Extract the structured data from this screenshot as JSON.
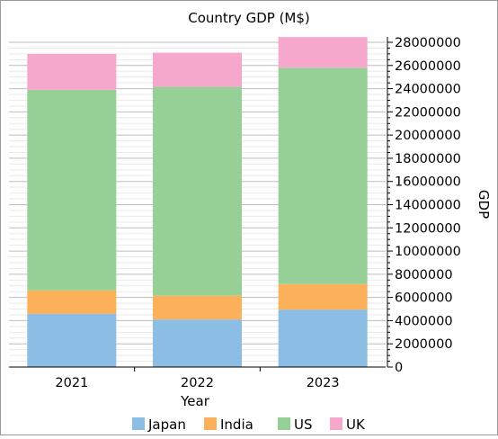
{
  "chart_data": {
    "type": "bar",
    "stacked": true,
    "title": "Country GDP (M$)",
    "xlabel": "Year",
    "ylabel": "GDP",
    "categories": [
      "2021",
      "2022",
      "2023"
    ],
    "series": [
      {
        "name": "Japan",
        "color": "#8cbde5",
        "values": [
          4600000,
          4100000,
          4950000
        ]
      },
      {
        "name": "India",
        "color": "#fcb05a",
        "values": [
          2000000,
          2050000,
          2200000
        ]
      },
      {
        "name": "US",
        "color": "#96d096",
        "values": [
          17300000,
          18000000,
          18650000
        ]
      },
      {
        "name": "UK",
        "color": "#f5a8cb",
        "values": [
          3100000,
          2950000,
          2650000
        ]
      }
    ],
    "ylim": [
      0,
      28000000
    ],
    "yticks": [
      "0",
      "2000000",
      "4000000",
      "6000000",
      "8000000",
      "10000000",
      "12000000",
      "14000000",
      "16000000",
      "18000000",
      "20000000",
      "22000000",
      "24000000",
      "26000000",
      "28000000"
    ],
    "y_axis_position": "right",
    "grid": true,
    "legend_position": "bottom"
  }
}
